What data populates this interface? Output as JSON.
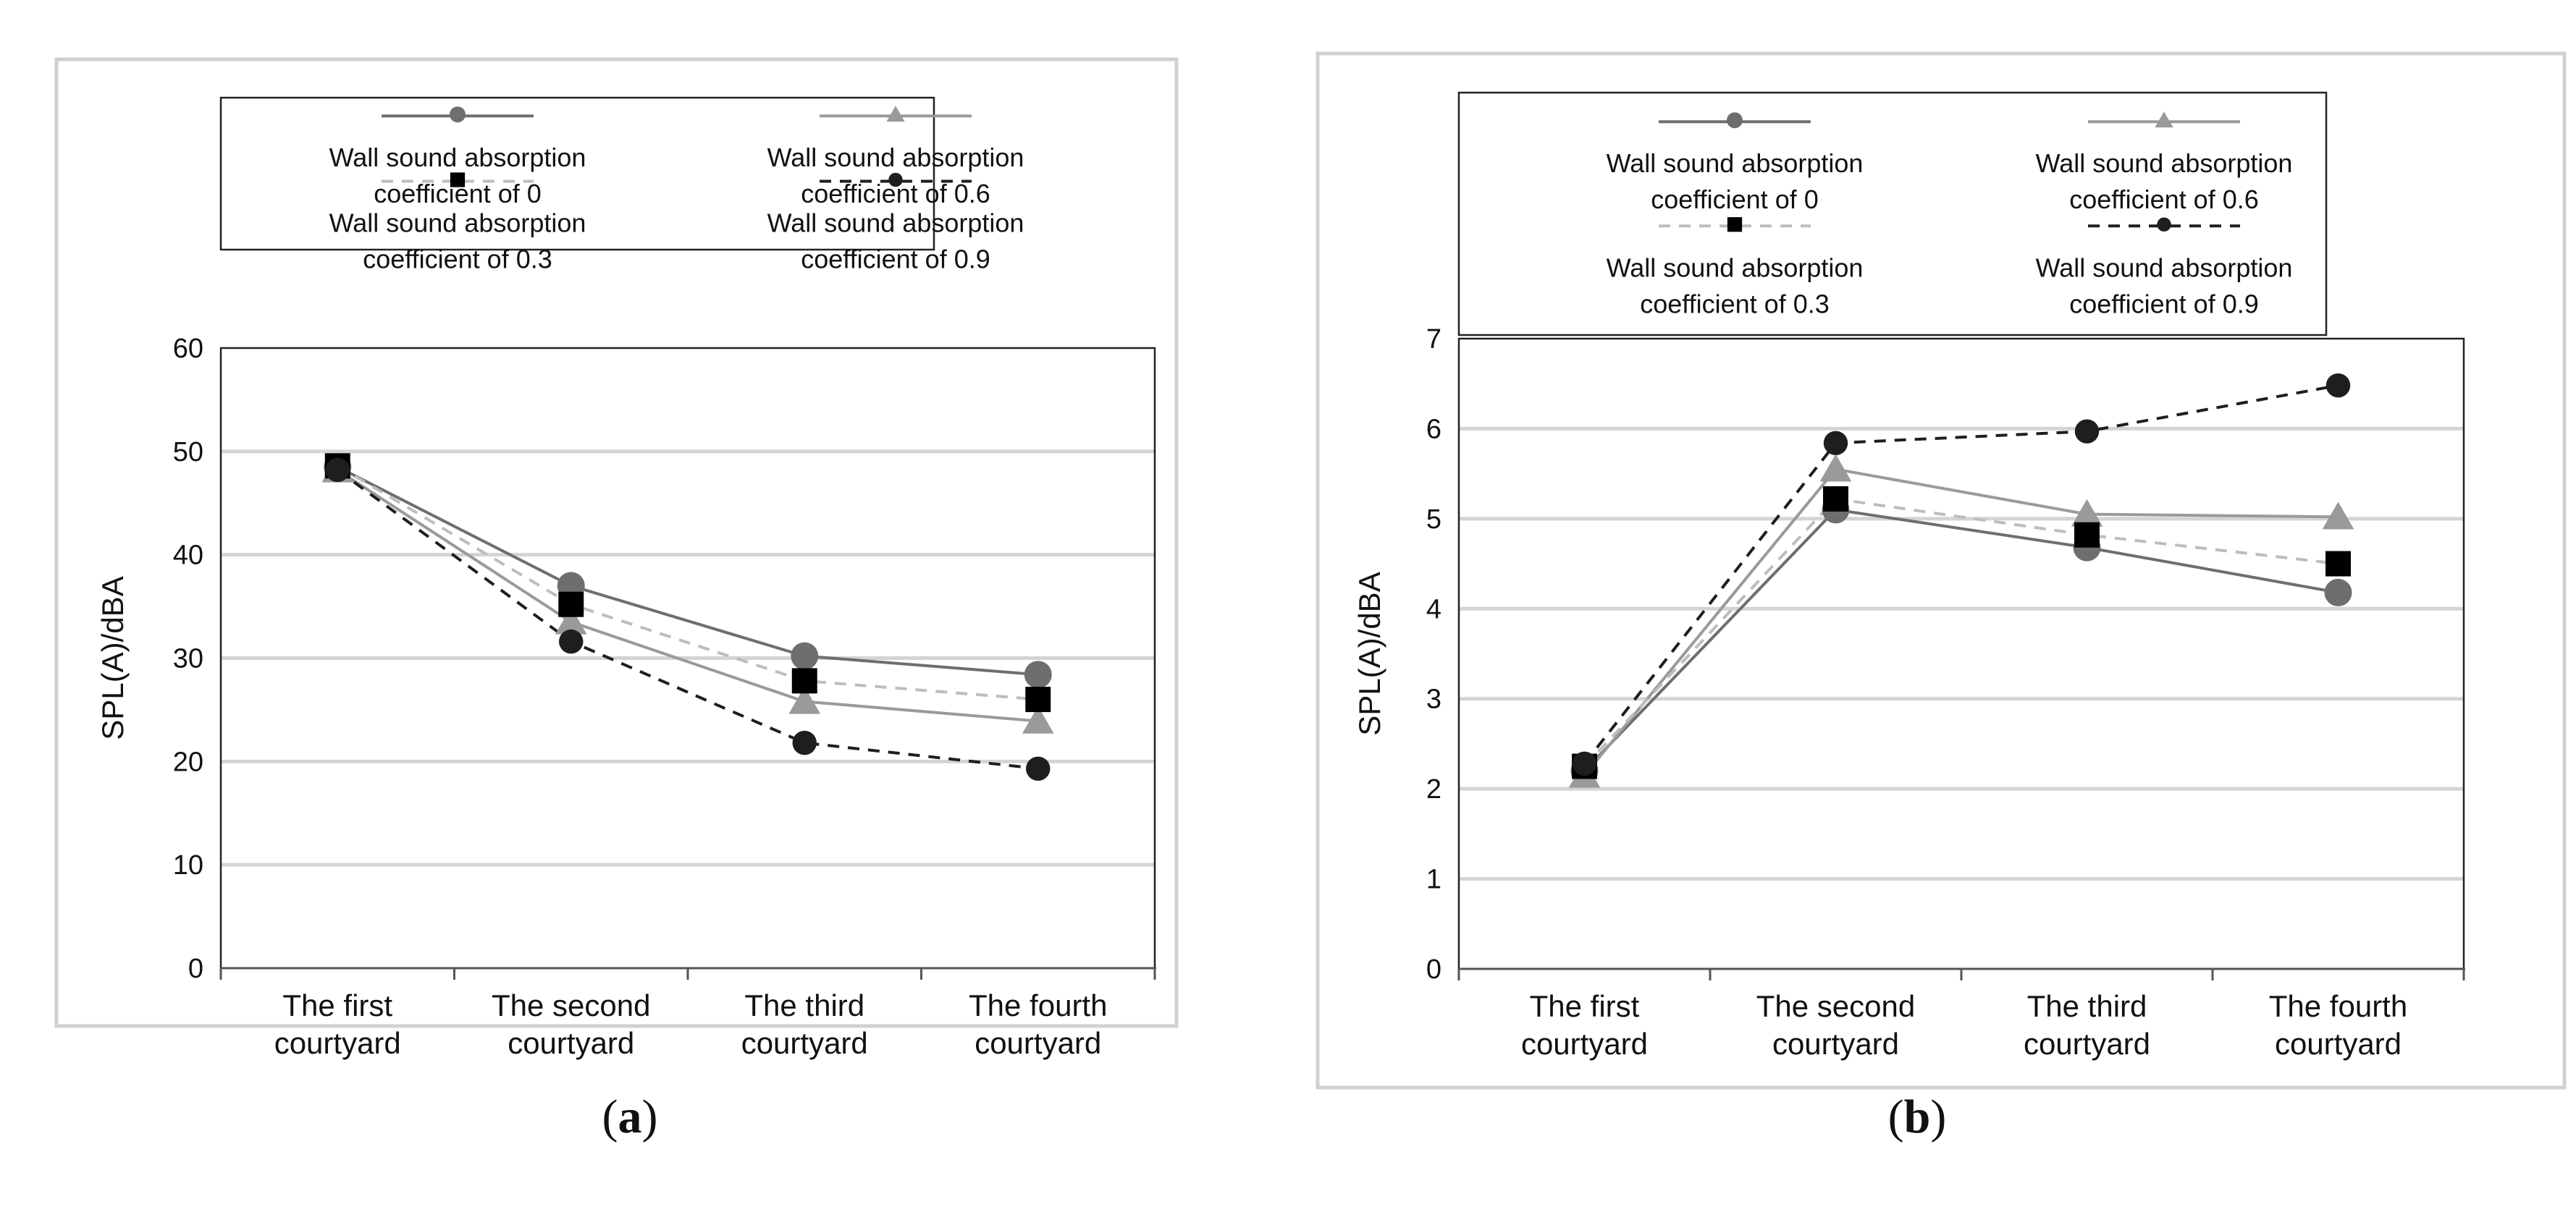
{
  "chart_data": [
    {
      "type": "line",
      "caption_letter": "a",
      "ylabel": "SPL(A)/dBA",
      "ylim": [
        0,
        60
      ],
      "yticks": [
        0,
        10,
        20,
        30,
        40,
        50,
        60
      ],
      "grid": true,
      "legend_position": "top",
      "categories": [
        [
          "The first",
          "courtyard"
        ],
        [
          "The second",
          "courtyard"
        ],
        [
          "The third",
          "courtyard"
        ],
        [
          "The fourth",
          "courtyard"
        ]
      ],
      "series": [
        {
          "name": [
            "Wall sound absorption",
            "coefficient of 0"
          ],
          "values": [
            48.5,
            37.0,
            30.2,
            28.4
          ],
          "color": "#6e6e6e",
          "dash": "solid",
          "marker": "circle"
        },
        {
          "name": [
            "Wall sound absorption",
            "coefficient of 0.6"
          ],
          "values": [
            48.2,
            33.5,
            25.8,
            23.9
          ],
          "color": "#9a9a9a",
          "dash": "solid",
          "marker": "triangle"
        },
        {
          "name": [
            "Wall sound absorption",
            "coefficient of 0.3"
          ],
          "values": [
            48.6,
            35.2,
            27.8,
            26.0
          ],
          "color": "#bdbdbd",
          "dash": "dashed",
          "marker": "square"
        },
        {
          "name": [
            "Wall sound absorption",
            "coefficient of 0.9"
          ],
          "values": [
            48.2,
            31.6,
            21.8,
            19.3
          ],
          "color": "#1e1e1e",
          "dash": "dashed",
          "marker": "circle-small"
        }
      ]
    },
    {
      "type": "line",
      "caption_letter": "b",
      "ylabel": "SPL(A)/dBA",
      "ylim": [
        0,
        7
      ],
      "yticks": [
        0,
        1,
        2,
        3,
        4,
        5,
        6,
        7
      ],
      "grid": true,
      "legend_position": "top",
      "categories": [
        [
          "The first",
          "courtyard"
        ],
        [
          "The second",
          "courtyard"
        ],
        [
          "The third",
          "courtyard"
        ],
        [
          "The fourth",
          "courtyard"
        ]
      ],
      "series": [
        {
          "name": [
            "Wall sound absorption",
            "coefficient of 0"
          ],
          "values": [
            2.2,
            5.1,
            4.68,
            4.18
          ],
          "color": "#6e6e6e",
          "dash": "solid",
          "marker": "circle"
        },
        {
          "name": [
            "Wall sound absorption",
            "coefficient of 0.6"
          ],
          "values": [
            2.15,
            5.55,
            5.05,
            5.02
          ],
          "color": "#9a9a9a",
          "dash": "solid",
          "marker": "triangle"
        },
        {
          "name": [
            "Wall sound absorption",
            "coefficient of 0.3"
          ],
          "values": [
            2.25,
            5.22,
            4.82,
            4.5
          ],
          "color": "#bdbdbd",
          "dash": "dashed",
          "marker": "square"
        },
        {
          "name": [
            "Wall sound absorption",
            "coefficient of 0.9"
          ],
          "values": [
            2.28,
            5.84,
            5.97,
            6.48
          ],
          "color": "#1e1e1e",
          "dash": "dashed",
          "marker": "circle-small"
        }
      ]
    }
  ]
}
